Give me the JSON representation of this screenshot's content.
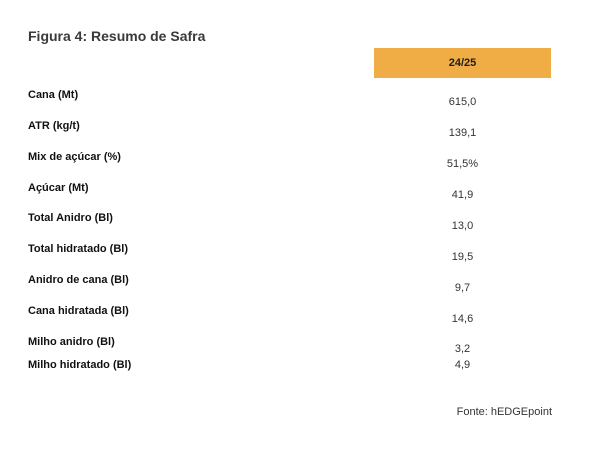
{
  "figure": {
    "title": "Figura 4: Resumo de Safra",
    "column_header": "24/25",
    "source": "Fonte: hEDGEpoint"
  },
  "rows": [
    {
      "label": "Cana (Mt)",
      "value": "615,0"
    },
    {
      "label": "ATR (kg/t)",
      "value": "139,1"
    },
    {
      "label": "Mix de açúcar (%)",
      "value": "51,5%"
    },
    {
      "label": "Açúcar (Mt)",
      "value": "41,9"
    },
    {
      "label": "Total Anidro (Bl)",
      "value": "13,0"
    },
    {
      "label": "Total hidratado (Bl)",
      "value": "19,5"
    },
    {
      "label": "Anidro de cana (Bl)",
      "value": "9,7"
    },
    {
      "label": "Cana hidratada (Bl)",
      "value": "14,6"
    },
    {
      "label": "Milho anidro (Bl)",
      "value": "3,2"
    },
    {
      "label": "Milho hidratado (Bl)",
      "value": "4,9"
    }
  ]
}
